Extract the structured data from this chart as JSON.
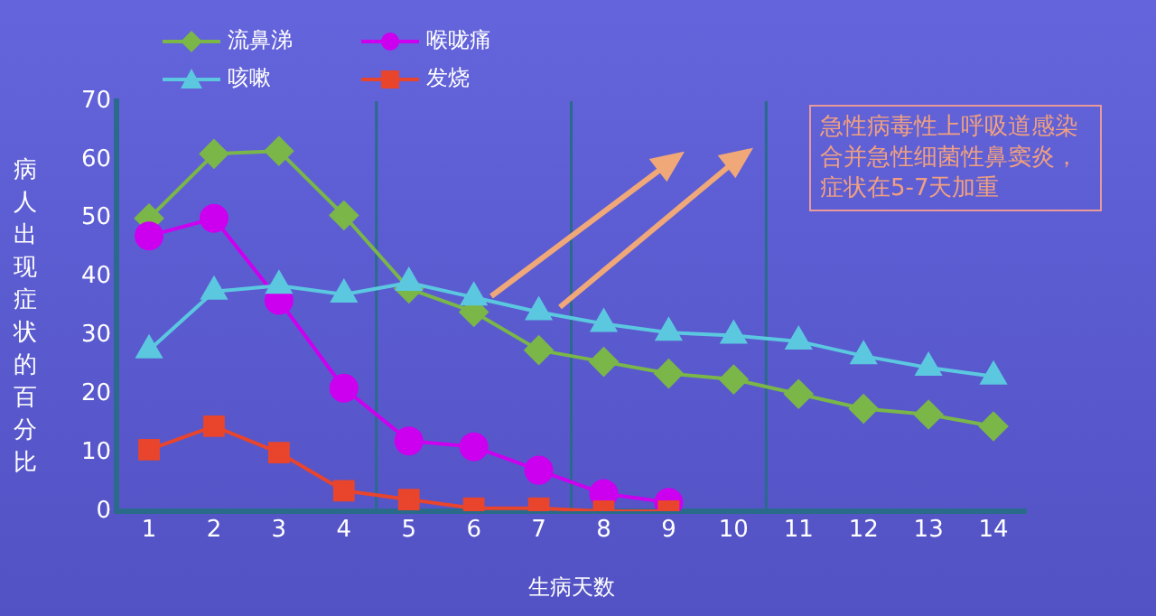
{
  "chart_data": {
    "type": "line",
    "xlabel": "生病天数",
    "ylabel": "病人出现症状的百分比",
    "x": [
      1,
      2,
      3,
      4,
      5,
      6,
      7,
      8,
      9,
      10,
      11,
      12,
      13,
      14
    ],
    "xlim": [
      0.5,
      14.5
    ],
    "xticks": [
      1,
      2,
      3,
      4,
      5,
      6,
      7,
      8,
      9,
      10,
      11,
      12,
      13,
      14
    ],
    "ylim": [
      0,
      70
    ],
    "yticks": [
      0,
      10,
      20,
      30,
      40,
      50,
      60,
      70
    ],
    "series": [
      {
        "name": "流鼻涕",
        "color": "#7ab648",
        "marker": "diamond",
        "values": [
          50,
          61,
          61.5,
          50.5,
          38,
          34,
          27.5,
          25.5,
          23.5,
          22.5,
          20,
          17.5,
          16.5,
          14.5
        ]
      },
      {
        "name": "喉咙痛",
        "color": "#cc00ee",
        "marker": "circle",
        "values": [
          47,
          50,
          36,
          21,
          12,
          11,
          7,
          3,
          1.5,
          null,
          null,
          null,
          null,
          null
        ]
      },
      {
        "name": "咳嗽",
        "color": "#5bc8e0",
        "marker": "triangle",
        "values": [
          27.5,
          37.5,
          38.5,
          37,
          39,
          36.5,
          34,
          32,
          30.5,
          30,
          29,
          26.5,
          24.5,
          23
        ]
      },
      {
        "name": "发烧",
        "color": "#e8452c",
        "marker": "square",
        "values": [
          10.5,
          14.5,
          10,
          3.5,
          2,
          0.5,
          0.5,
          0,
          0,
          null,
          null,
          null,
          null,
          null
        ]
      }
    ],
    "ref_lines": [
      {
        "axis": "x",
        "value": 4.5,
        "color": "#2a6a8a"
      },
      {
        "axis": "x",
        "value": 7.5,
        "color": "#2a6a8a"
      },
      {
        "axis": "x",
        "value": 10.5,
        "color": "#2a6a8a"
      }
    ],
    "annotations": [
      "急性病毒性上呼吸道感染合并急性细菌性鼻窦炎，症状在5-7天加重"
    ],
    "grid": false,
    "legend": "top left",
    "line_style": "solid"
  }
}
